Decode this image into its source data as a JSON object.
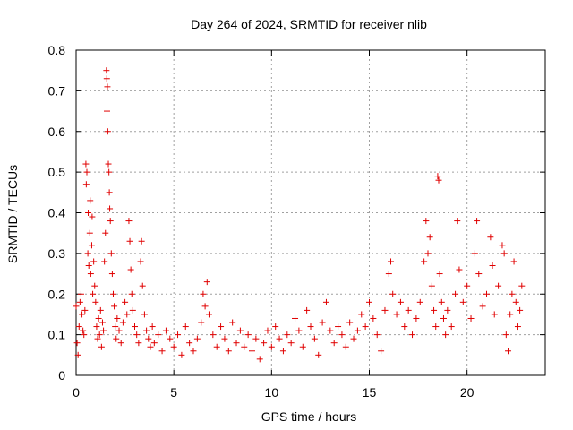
{
  "chart_data": {
    "type": "scatter",
    "title": "Day 264 of 2024, SRMTID for receiver nlib",
    "xlabel": "GPS time / hours",
    "ylabel": "SRMTID / TECUs",
    "xlim": [
      0,
      24
    ],
    "ylim": [
      0,
      0.8
    ],
    "xticks": [
      0,
      5,
      10,
      15,
      20
    ],
    "yticks": [
      0,
      0.1,
      0.2,
      0.3,
      0.4,
      0.5,
      0.6,
      0.7,
      0.8
    ],
    "xtick_labels": [
      "0",
      "5",
      "10",
      "15",
      "20"
    ],
    "ytick_labels": [
      "0",
      "0.1",
      "0.2",
      "0.3",
      "0.4",
      "0.5",
      "0.6",
      "0.7",
      "0.8"
    ],
    "grid": true,
    "marker": "+",
    "color": "#e00000",
    "series": [
      {
        "name": "SRMTID",
        "points": [
          [
            0.0,
            0.17
          ],
          [
            0.05,
            0.08
          ],
          [
            0.1,
            0.05
          ],
          [
            0.15,
            0.12
          ],
          [
            0.2,
            0.18
          ],
          [
            0.25,
            0.2
          ],
          [
            0.3,
            0.15
          ],
          [
            0.35,
            0.11
          ],
          [
            0.4,
            0.1
          ],
          [
            0.45,
            0.16
          ],
          [
            0.5,
            0.52
          ],
          [
            0.52,
            0.47
          ],
          [
            0.55,
            0.5
          ],
          [
            0.6,
            0.3
          ],
          [
            0.62,
            0.4
          ],
          [
            0.65,
            0.27
          ],
          [
            0.7,
            0.35
          ],
          [
            0.72,
            0.43
          ],
          [
            0.75,
            0.25
          ],
          [
            0.8,
            0.32
          ],
          [
            0.82,
            0.39
          ],
          [
            0.85,
            0.2
          ],
          [
            0.9,
            0.28
          ],
          [
            0.95,
            0.22
          ],
          [
            1.0,
            0.18
          ],
          [
            1.05,
            0.12
          ],
          [
            1.1,
            0.09
          ],
          [
            1.15,
            0.14
          ],
          [
            1.2,
            0.1
          ],
          [
            1.25,
            0.16
          ],
          [
            1.3,
            0.07
          ],
          [
            1.35,
            0.13
          ],
          [
            1.4,
            0.11
          ],
          [
            1.45,
            0.28
          ],
          [
            1.5,
            0.35
          ],
          [
            1.55,
            0.75
          ],
          [
            1.57,
            0.73
          ],
          [
            1.58,
            0.65
          ],
          [
            1.6,
            0.71
          ],
          [
            1.62,
            0.6
          ],
          [
            1.65,
            0.52
          ],
          [
            1.68,
            0.5
          ],
          [
            1.7,
            0.45
          ],
          [
            1.72,
            0.41
          ],
          [
            1.75,
            0.38
          ],
          [
            1.8,
            0.3
          ],
          [
            1.85,
            0.25
          ],
          [
            1.9,
            0.2
          ],
          [
            1.95,
            0.17
          ],
          [
            2.0,
            0.12
          ],
          [
            2.05,
            0.09
          ],
          [
            2.1,
            0.14
          ],
          [
            2.2,
            0.11
          ],
          [
            2.3,
            0.08
          ],
          [
            2.4,
            0.13
          ],
          [
            2.5,
            0.18
          ],
          [
            2.6,
            0.15
          ],
          [
            2.7,
            0.38
          ],
          [
            2.75,
            0.33
          ],
          [
            2.8,
            0.26
          ],
          [
            2.85,
            0.2
          ],
          [
            2.9,
            0.16
          ],
          [
            3.0,
            0.12
          ],
          [
            3.1,
            0.1
          ],
          [
            3.2,
            0.08
          ],
          [
            3.3,
            0.28
          ],
          [
            3.35,
            0.33
          ],
          [
            3.4,
            0.22
          ],
          [
            3.5,
            0.15
          ],
          [
            3.6,
            0.11
          ],
          [
            3.7,
            0.09
          ],
          [
            3.8,
            0.07
          ],
          [
            3.9,
            0.12
          ],
          [
            4.0,
            0.08
          ],
          [
            4.2,
            0.1
          ],
          [
            4.4,
            0.06
          ],
          [
            4.6,
            0.11
          ],
          [
            4.8,
            0.09
          ],
          [
            5.0,
            0.07
          ],
          [
            5.2,
            0.1
          ],
          [
            5.4,
            0.05
          ],
          [
            5.6,
            0.12
          ],
          [
            5.8,
            0.08
          ],
          [
            6.0,
            0.06
          ],
          [
            6.2,
            0.09
          ],
          [
            6.4,
            0.13
          ],
          [
            6.5,
            0.2
          ],
          [
            6.6,
            0.17
          ],
          [
            6.7,
            0.23
          ],
          [
            6.8,
            0.15
          ],
          [
            7.0,
            0.1
          ],
          [
            7.2,
            0.07
          ],
          [
            7.4,
            0.12
          ],
          [
            7.6,
            0.09
          ],
          [
            7.8,
            0.06
          ],
          [
            8.0,
            0.13
          ],
          [
            8.2,
            0.08
          ],
          [
            8.4,
            0.11
          ],
          [
            8.6,
            0.07
          ],
          [
            8.8,
            0.1
          ],
          [
            9.0,
            0.06
          ],
          [
            9.2,
            0.09
          ],
          [
            9.4,
            0.04
          ],
          [
            9.6,
            0.08
          ],
          [
            9.8,
            0.11
          ],
          [
            10.0,
            0.07
          ],
          [
            10.2,
            0.12
          ],
          [
            10.4,
            0.09
          ],
          [
            10.6,
            0.06
          ],
          [
            10.8,
            0.1
          ],
          [
            11.0,
            0.08
          ],
          [
            11.2,
            0.14
          ],
          [
            11.4,
            0.11
          ],
          [
            11.6,
            0.07
          ],
          [
            11.8,
            0.16
          ],
          [
            12.0,
            0.12
          ],
          [
            12.2,
            0.09
          ],
          [
            12.4,
            0.05
          ],
          [
            12.6,
            0.13
          ],
          [
            12.8,
            0.18
          ],
          [
            13.0,
            0.11
          ],
          [
            13.2,
            0.08
          ],
          [
            13.4,
            0.12
          ],
          [
            13.6,
            0.1
          ],
          [
            13.8,
            0.07
          ],
          [
            14.0,
            0.13
          ],
          [
            14.2,
            0.09
          ],
          [
            14.4,
            0.11
          ],
          [
            14.6,
            0.15
          ],
          [
            14.8,
            0.12
          ],
          [
            15.0,
            0.18
          ],
          [
            15.2,
            0.14
          ],
          [
            15.4,
            0.1
          ],
          [
            15.6,
            0.06
          ],
          [
            15.8,
            0.16
          ],
          [
            16.0,
            0.25
          ],
          [
            16.1,
            0.28
          ],
          [
            16.2,
            0.2
          ],
          [
            16.4,
            0.15
          ],
          [
            16.6,
            0.18
          ],
          [
            16.8,
            0.12
          ],
          [
            17.0,
            0.16
          ],
          [
            17.2,
            0.1
          ],
          [
            17.4,
            0.14
          ],
          [
            17.6,
            0.18
          ],
          [
            17.8,
            0.28
          ],
          [
            17.9,
            0.38
          ],
          [
            18.0,
            0.3
          ],
          [
            18.1,
            0.34
          ],
          [
            18.2,
            0.22
          ],
          [
            18.3,
            0.16
          ],
          [
            18.4,
            0.12
          ],
          [
            18.5,
            0.49
          ],
          [
            18.55,
            0.48
          ],
          [
            18.6,
            0.25
          ],
          [
            18.7,
            0.18
          ],
          [
            18.8,
            0.14
          ],
          [
            18.9,
            0.1
          ],
          [
            19.0,
            0.16
          ],
          [
            19.2,
            0.12
          ],
          [
            19.4,
            0.2
          ],
          [
            19.5,
            0.38
          ],
          [
            19.6,
            0.26
          ],
          [
            19.8,
            0.18
          ],
          [
            20.0,
            0.22
          ],
          [
            20.2,
            0.14
          ],
          [
            20.4,
            0.3
          ],
          [
            20.5,
            0.38
          ],
          [
            20.6,
            0.25
          ],
          [
            20.8,
            0.17
          ],
          [
            21.0,
            0.2
          ],
          [
            21.2,
            0.34
          ],
          [
            21.3,
            0.27
          ],
          [
            21.4,
            0.15
          ],
          [
            21.6,
            0.22
          ],
          [
            21.8,
            0.32
          ],
          [
            21.9,
            0.3
          ],
          [
            22.0,
            0.1
          ],
          [
            22.1,
            0.06
          ],
          [
            22.2,
            0.15
          ],
          [
            22.3,
            0.2
          ],
          [
            22.4,
            0.28
          ],
          [
            22.5,
            0.18
          ],
          [
            22.6,
            0.12
          ],
          [
            22.7,
            0.16
          ],
          [
            22.8,
            0.22
          ]
        ]
      }
    ]
  }
}
